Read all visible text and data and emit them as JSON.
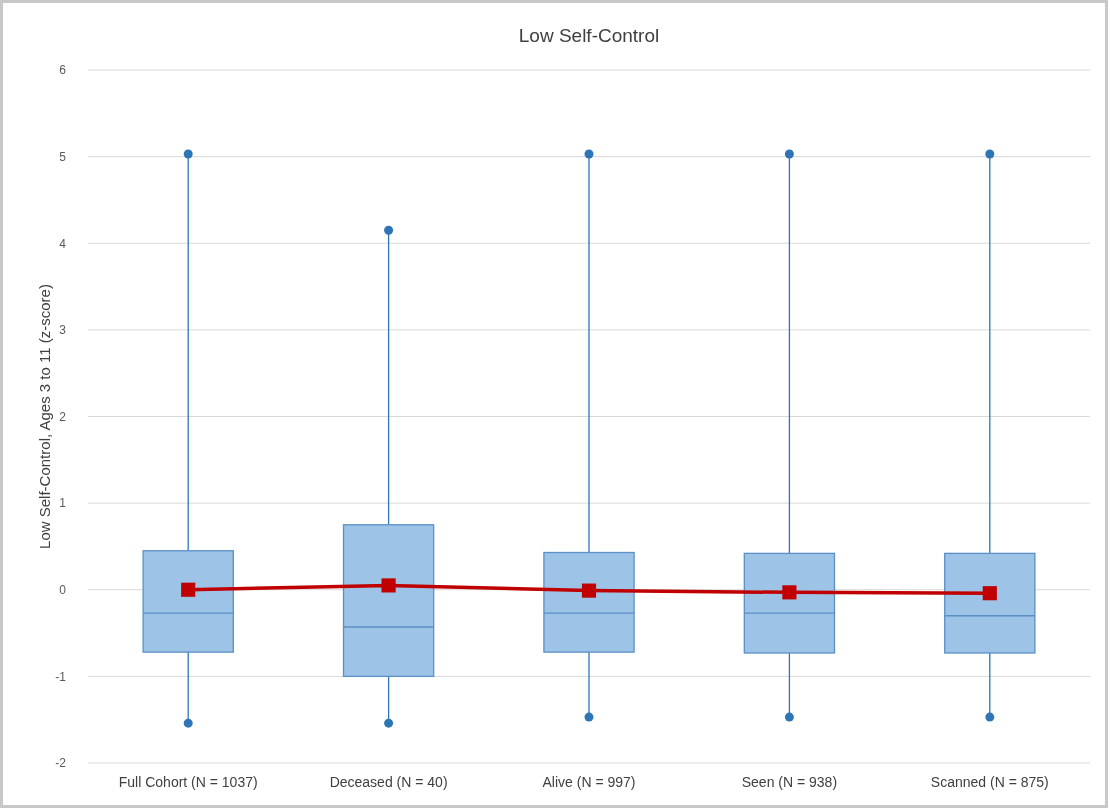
{
  "chart_data": {
    "type": "box",
    "title": "Low Self-Control",
    "ylabel": "Low Self-Control, Ages 3 to 11 (z-score)",
    "categories": [
      "Full Cohort (N = 1037)",
      "Deceased (N = 40)",
      "Alive (N = 997)",
      "Seen (N = 938)",
      "Scanned (N = 875)"
    ],
    "color": "#9dc3e6",
    "boxes": [
      {
        "low": -1.54,
        "q1": -0.72,
        "median": -0.27,
        "q3": 0.45,
        "high": 5.03
      },
      {
        "low": -1.54,
        "q1": -1.0,
        "median": -0.43,
        "q3": 0.75,
        "high": 4.15
      },
      {
        "low": -1.47,
        "q1": -0.72,
        "median": -0.27,
        "q3": 0.43,
        "high": 5.03
      },
      {
        "low": -1.47,
        "q1": -0.73,
        "median": -0.27,
        "q3": 0.42,
        "high": 5.03
      },
      {
        "low": -1.47,
        "q1": -0.73,
        "median": -0.3,
        "q3": 0.42,
        "high": 5.03
      }
    ],
    "series": [
      {
        "type": "line",
        "color": "#c00000",
        "values": [
          0,
          0.05,
          -0.01,
          -0.03,
          -0.04
        ]
      }
    ],
    "marker": "square",
    "ylim": [
      -2,
      6
    ],
    "yticks": [
      -2,
      -1,
      0,
      1,
      2,
      3,
      4,
      5,
      6
    ],
    "grid": "y"
  }
}
